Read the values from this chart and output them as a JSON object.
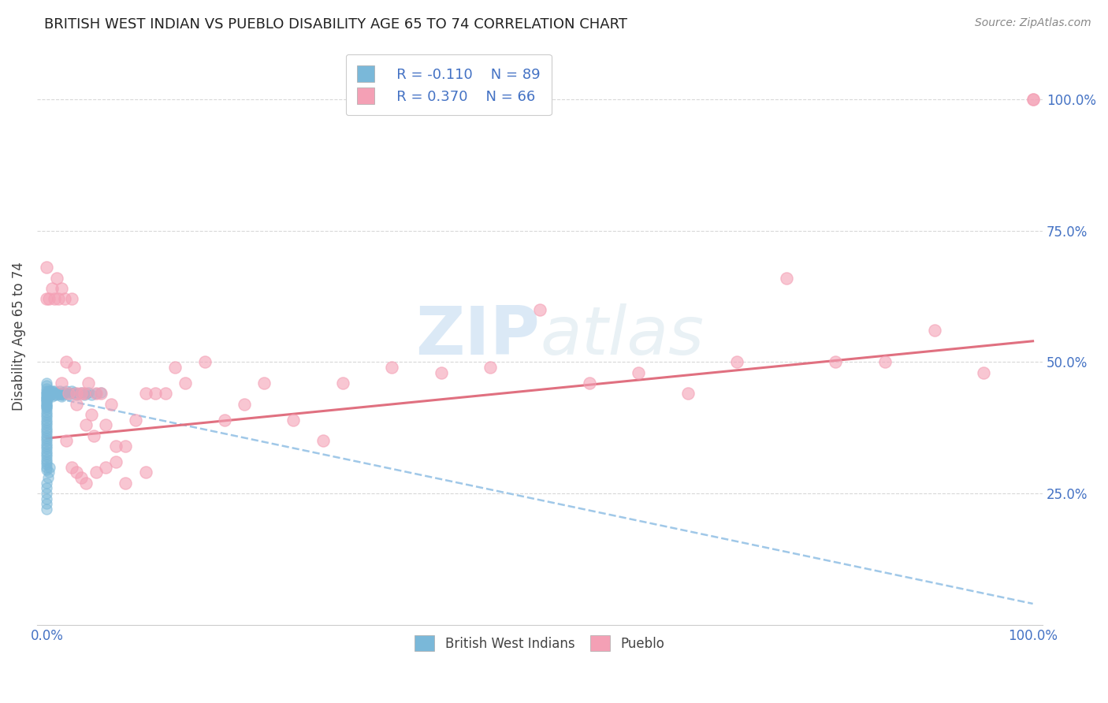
{
  "title": "BRITISH WEST INDIAN VS PUEBLO DISABILITY AGE 65 TO 74 CORRELATION CHART",
  "source": "Source: ZipAtlas.com",
  "ylabel": "Disability Age 65 to 74",
  "legend_labels": [
    "British West Indians",
    "Pueblo"
  ],
  "legend_r_blue": "R = -0.110",
  "legend_n_blue": "N = 89",
  "legend_r_pink": "R = 0.370",
  "legend_n_pink": "N = 66",
  "color_blue": "#7ab8d9",
  "color_pink": "#f4a0b5",
  "color_blue_line": "#a0c8e8",
  "color_pink_line": "#e07080",
  "color_blue_text": "#4472c4",
  "color_grid": "#d8d8d8",
  "background_color": "#ffffff",
  "blue_x": [
    0.0,
    0.0,
    0.0,
    0.0,
    0.0,
    0.0,
    0.0,
    0.0,
    0.0,
    0.0,
    0.0,
    0.0,
    0.0,
    0.0,
    0.0,
    0.0,
    0.0,
    0.0,
    0.0,
    0.0,
    0.0,
    0.0,
    0.0,
    0.0,
    0.0,
    0.0,
    0.0,
    0.0,
    0.0,
    0.0,
    0.0,
    0.0,
    0.0,
    0.0,
    0.0,
    0.0,
    0.0,
    0.0,
    0.0,
    0.0,
    0.001,
    0.001,
    0.002,
    0.002,
    0.002,
    0.003,
    0.003,
    0.004,
    0.004,
    0.005,
    0.005,
    0.005,
    0.006,
    0.007,
    0.008,
    0.008,
    0.01,
    0.01,
    0.012,
    0.013,
    0.015,
    0.015,
    0.015,
    0.016,
    0.018,
    0.02,
    0.02,
    0.022,
    0.025,
    0.025,
    0.028,
    0.03,
    0.032,
    0.035,
    0.038,
    0.04,
    0.042,
    0.045,
    0.05,
    0.055,
    0.0,
    0.0,
    0.0,
    0.0,
    0.0,
    0.0,
    0.001,
    0.002,
    0.003
  ],
  "blue_y": [
    0.44,
    0.435,
    0.43,
    0.425,
    0.42,
    0.415,
    0.41,
    0.405,
    0.4,
    0.395,
    0.39,
    0.385,
    0.38,
    0.375,
    0.37,
    0.365,
    0.36,
    0.355,
    0.35,
    0.345,
    0.34,
    0.335,
    0.33,
    0.325,
    0.32,
    0.315,
    0.31,
    0.305,
    0.3,
    0.295,
    0.46,
    0.455,
    0.45,
    0.445,
    0.44,
    0.435,
    0.43,
    0.425,
    0.42,
    0.415,
    0.442,
    0.438,
    0.445,
    0.44,
    0.435,
    0.442,
    0.438,
    0.445,
    0.438,
    0.445,
    0.44,
    0.435,
    0.442,
    0.44,
    0.445,
    0.438,
    0.442,
    0.438,
    0.44,
    0.445,
    0.442,
    0.438,
    0.435,
    0.44,
    0.442,
    0.445,
    0.44,
    0.438,
    0.445,
    0.44,
    0.442,
    0.438,
    0.44,
    0.442,
    0.438,
    0.44,
    0.442,
    0.438,
    0.44,
    0.442,
    0.22,
    0.23,
    0.24,
    0.25,
    0.26,
    0.27,
    0.28,
    0.29,
    0.3
  ],
  "pink_x": [
    0.0,
    0.0,
    0.002,
    0.005,
    0.008,
    0.01,
    0.012,
    0.015,
    0.015,
    0.018,
    0.02,
    0.022,
    0.025,
    0.028,
    0.03,
    0.03,
    0.035,
    0.038,
    0.04,
    0.042,
    0.045,
    0.048,
    0.05,
    0.055,
    0.06,
    0.065,
    0.07,
    0.08,
    0.09,
    0.1,
    0.11,
    0.12,
    0.13,
    0.14,
    0.16,
    0.18,
    0.2,
    0.22,
    0.25,
    0.28,
    0.3,
    0.35,
    0.4,
    0.45,
    0.5,
    0.55,
    0.6,
    0.65,
    0.7,
    0.75,
    0.8,
    0.85,
    0.9,
    0.95,
    1.0,
    1.0,
    0.02,
    0.025,
    0.03,
    0.035,
    0.04,
    0.05,
    0.06,
    0.07,
    0.08,
    0.1
  ],
  "pink_y": [
    0.62,
    0.68,
    0.62,
    0.64,
    0.62,
    0.66,
    0.62,
    0.64,
    0.46,
    0.62,
    0.5,
    0.44,
    0.62,
    0.49,
    0.44,
    0.42,
    0.44,
    0.44,
    0.38,
    0.46,
    0.4,
    0.36,
    0.44,
    0.44,
    0.38,
    0.42,
    0.34,
    0.34,
    0.39,
    0.44,
    0.44,
    0.44,
    0.49,
    0.46,
    0.5,
    0.39,
    0.42,
    0.46,
    0.39,
    0.35,
    0.46,
    0.49,
    0.48,
    0.49,
    0.6,
    0.46,
    0.48,
    0.44,
    0.5,
    0.66,
    0.5,
    0.5,
    0.56,
    0.48,
    1.0,
    1.0,
    0.35,
    0.3,
    0.29,
    0.28,
    0.27,
    0.29,
    0.3,
    0.31,
    0.27,
    0.29
  ],
  "blue_trend_x": [
    0.0,
    1.0
  ],
  "blue_trend_y": [
    0.435,
    0.04
  ],
  "pink_trend_x": [
    0.0,
    1.0
  ],
  "pink_trend_y": [
    0.355,
    0.54
  ],
  "xlim": [
    -0.01,
    1.01
  ],
  "ylim": [
    0.0,
    1.1
  ],
  "yticks": [
    0.25,
    0.5,
    0.75,
    1.0
  ],
  "xticks": [
    0.0,
    1.0
  ]
}
